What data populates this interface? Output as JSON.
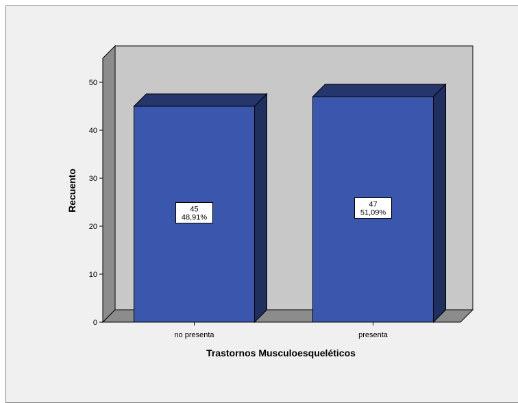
{
  "chart_data": {
    "type": "bar",
    "style": "3d",
    "categories": [
      "no presenta",
      "presenta"
    ],
    "values": [
      45,
      47
    ],
    "percent_labels": [
      "48,91%",
      "51,09%"
    ],
    "value_labels": [
      "45",
      "47"
    ],
    "xlabel": "Trastornos Musculoesqueléticos",
    "ylabel": "Recuento",
    "ylim": [
      0,
      55
    ],
    "yticks": [
      0,
      10,
      20,
      30,
      40,
      50
    ],
    "grid": false,
    "legend": "none",
    "colors": {
      "bar_front": "#3b57ad",
      "bar_top": "#24366b",
      "bar_side": "#1f2f5e",
      "back_wall": "#c8c8c8",
      "floor": "#8c8c8c",
      "left_wall": "#8c8c8c",
      "frame_bg": "#f0f0f0"
    }
  }
}
